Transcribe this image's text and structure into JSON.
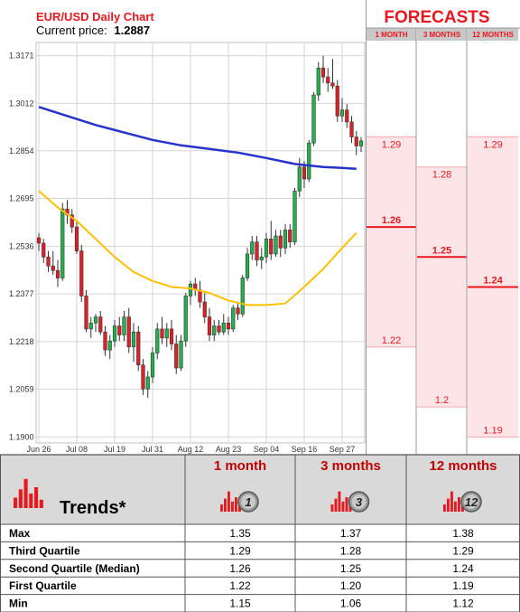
{
  "header": {
    "chart_title": "EUR/USD Daily Chart",
    "price_label": "Current price:",
    "price_value": "1.2887",
    "forecasts_title": "FORECASTS"
  },
  "forecast_columns": [
    "1 MONTH",
    "3 MONTHS",
    "12 MONTHS"
  ],
  "forecast_labels": {
    "1m": {
      "q3": "1.29",
      "median": "1.26",
      "q1": "1.22"
    },
    "3m": {
      "q3": "1.28",
      "median": "1.25",
      "q1": "1.2"
    },
    "12m": {
      "q3": "1.29",
      "median": "1.24",
      "q1": "1.19"
    }
  },
  "colors": {
    "title_red": "#e8191e",
    "forecast_red": "#e8191e",
    "band_pink": "#fde4e6",
    "header_gray": "#c8c8c8",
    "ma_short": "#ffc000",
    "ma_long": "#2633c9",
    "bull": "#22b14c",
    "bear": "#e21f26",
    "table_header_bg": "#d9d9d9",
    "table_red": "#c00000"
  },
  "trends": {
    "title": "Trends*",
    "headers": [
      "1 month",
      "3 months",
      "12 months"
    ],
    "badges": [
      "1",
      "3",
      "12"
    ],
    "rows": [
      {
        "label": "Max",
        "values": [
          "1.35",
          "1.37",
          "1.38"
        ]
      },
      {
        "label": "Third Quartile",
        "values": [
          "1.29",
          "1.28",
          "1.29"
        ]
      },
      {
        "label": "Second Quartile (Median)",
        "values": [
          "1.26",
          "1.25",
          "1.24"
        ]
      },
      {
        "label": "First Quartile",
        "values": [
          "1.22",
          "1.20",
          "1.19"
        ]
      },
      {
        "label": "Min",
        "values": [
          "1.15",
          "1.06",
          "1.12"
        ]
      }
    ]
  },
  "chart_data": {
    "type": "candlestick",
    "title": "EUR/USD Daily Chart",
    "ylim": [
      1.188,
      1.3215
    ],
    "y_ticks": [
      "1.3171",
      "1.3012",
      "1.2854",
      "1.2695",
      "1.2536",
      "1.2377",
      "1.2218",
      "1.2059",
      "1.1900"
    ],
    "x_ticks": [
      "Jun 26",
      "Jul 08",
      "Jul 19",
      "Jul 31",
      "Aug 12",
      "Aug 23",
      "Sep 04",
      "Sep 16",
      "Sep 27"
    ],
    "x_tick_index": [
      0,
      8,
      16,
      24,
      32,
      40,
      48,
      56,
      64
    ],
    "grid": true,
    "candles": [
      {
        "o": 1.2564,
        "h": 1.258,
        "l": 1.252,
        "c": 1.2546
      },
      {
        "o": 1.2546,
        "h": 1.256,
        "l": 1.248,
        "c": 1.25
      },
      {
        "o": 1.25,
        "h": 1.252,
        "l": 1.245,
        "c": 1.247
      },
      {
        "o": 1.247,
        "h": 1.252,
        "l": 1.244,
        "c": 1.2455
      },
      {
        "o": 1.2455,
        "h": 1.249,
        "l": 1.24,
        "c": 1.243
      },
      {
        "o": 1.243,
        "h": 1.268,
        "l": 1.242,
        "c": 1.266
      },
      {
        "o": 1.266,
        "h": 1.269,
        "l": 1.261,
        "c": 1.264
      },
      {
        "o": 1.264,
        "h": 1.266,
        "l": 1.258,
        "c": 1.26
      },
      {
        "o": 1.26,
        "h": 1.262,
        "l": 1.251,
        "c": 1.252
      },
      {
        "o": 1.252,
        "h": 1.254,
        "l": 1.235,
        "c": 1.237
      },
      {
        "o": 1.237,
        "h": 1.239,
        "l": 1.225,
        "c": 1.226
      },
      {
        "o": 1.226,
        "h": 1.23,
        "l": 1.223,
        "c": 1.228
      },
      {
        "o": 1.228,
        "h": 1.231,
        "l": 1.225,
        "c": 1.23
      },
      {
        "o": 1.23,
        "h": 1.232,
        "l": 1.224,
        "c": 1.225
      },
      {
        "o": 1.225,
        "h": 1.227,
        "l": 1.217,
        "c": 1.219
      },
      {
        "o": 1.219,
        "h": 1.224,
        "l": 1.216,
        "c": 1.222
      },
      {
        "o": 1.222,
        "h": 1.229,
        "l": 1.22,
        "c": 1.227
      },
      {
        "o": 1.227,
        "h": 1.23,
        "l": 1.222,
        "c": 1.224
      },
      {
        "o": 1.224,
        "h": 1.232,
        "l": 1.222,
        "c": 1.23
      },
      {
        "o": 1.23,
        "h": 1.233,
        "l": 1.218,
        "c": 1.22
      },
      {
        "o": 1.22,
        "h": 1.228,
        "l": 1.215,
        "c": 1.225
      },
      {
        "o": 1.225,
        "h": 1.227,
        "l": 1.212,
        "c": 1.214
      },
      {
        "o": 1.214,
        "h": 1.216,
        "l": 1.204,
        "c": 1.206
      },
      {
        "o": 1.206,
        "h": 1.212,
        "l": 1.203,
        "c": 1.21
      },
      {
        "o": 1.21,
        "h": 1.22,
        "l": 1.208,
        "c": 1.218
      },
      {
        "o": 1.218,
        "h": 1.228,
        "l": 1.216,
        "c": 1.226
      },
      {
        "o": 1.226,
        "h": 1.23,
        "l": 1.221,
        "c": 1.223
      },
      {
        "o": 1.223,
        "h": 1.228,
        "l": 1.22,
        "c": 1.226
      },
      {
        "o": 1.226,
        "h": 1.229,
        "l": 1.219,
        "c": 1.221
      },
      {
        "o": 1.221,
        "h": 1.224,
        "l": 1.211,
        "c": 1.213
      },
      {
        "o": 1.213,
        "h": 1.224,
        "l": 1.212,
        "c": 1.222
      },
      {
        "o": 1.222,
        "h": 1.238,
        "l": 1.22,
        "c": 1.237
      },
      {
        "o": 1.237,
        "h": 1.242,
        "l": 1.234,
        "c": 1.241
      },
      {
        "o": 1.241,
        "h": 1.243,
        "l": 1.237,
        "c": 1.239
      },
      {
        "o": 1.239,
        "h": 1.242,
        "l": 1.233,
        "c": 1.235
      },
      {
        "o": 1.235,
        "h": 1.238,
        "l": 1.228,
        "c": 1.23
      },
      {
        "o": 1.23,
        "h": 1.233,
        "l": 1.222,
        "c": 1.224
      },
      {
        "o": 1.224,
        "h": 1.229,
        "l": 1.222,
        "c": 1.227
      },
      {
        "o": 1.227,
        "h": 1.229,
        "l": 1.224,
        "c": 1.225
      },
      {
        "o": 1.225,
        "h": 1.231,
        "l": 1.224,
        "c": 1.228
      },
      {
        "o": 1.228,
        "h": 1.23,
        "l": 1.224,
        "c": 1.226
      },
      {
        "o": 1.226,
        "h": 1.234,
        "l": 1.225,
        "c": 1.233
      },
      {
        "o": 1.233,
        "h": 1.235,
        "l": 1.229,
        "c": 1.231
      },
      {
        "o": 1.231,
        "h": 1.244,
        "l": 1.23,
        "c": 1.243
      },
      {
        "o": 1.243,
        "h": 1.253,
        "l": 1.242,
        "c": 1.251
      },
      {
        "o": 1.251,
        "h": 1.257,
        "l": 1.249,
        "c": 1.255
      },
      {
        "o": 1.255,
        "h": 1.257,
        "l": 1.247,
        "c": 1.249
      },
      {
        "o": 1.249,
        "h": 1.253,
        "l": 1.246,
        "c": 1.25
      },
      {
        "o": 1.25,
        "h": 1.258,
        "l": 1.248,
        "c": 1.256
      },
      {
        "o": 1.256,
        "h": 1.262,
        "l": 1.249,
        "c": 1.251
      },
      {
        "o": 1.251,
        "h": 1.259,
        "l": 1.25,
        "c": 1.257
      },
      {
        "o": 1.257,
        "h": 1.259,
        "l": 1.25,
        "c": 1.253
      },
      {
        "o": 1.253,
        "h": 1.261,
        "l": 1.251,
        "c": 1.259
      },
      {
        "o": 1.259,
        "h": 1.261,
        "l": 1.253,
        "c": 1.255
      },
      {
        "o": 1.255,
        "h": 1.273,
        "l": 1.254,
        "c": 1.272
      },
      {
        "o": 1.272,
        "h": 1.283,
        "l": 1.27,
        "c": 1.28
      },
      {
        "o": 1.28,
        "h": 1.282,
        "l": 1.273,
        "c": 1.276
      },
      {
        "o": 1.276,
        "h": 1.289,
        "l": 1.275,
        "c": 1.288
      },
      {
        "o": 1.288,
        "h": 1.305,
        "l": 1.287,
        "c": 1.304
      },
      {
        "o": 1.304,
        "h": 1.315,
        "l": 1.302,
        "c": 1.313
      },
      {
        "o": 1.313,
        "h": 1.317,
        "l": 1.308,
        "c": 1.31
      },
      {
        "o": 1.31,
        "h": 1.313,
        "l": 1.305,
        "c": 1.308
      },
      {
        "o": 1.308,
        "h": 1.316,
        "l": 1.306,
        "c": 1.307
      },
      {
        "o": 1.307,
        "h": 1.309,
        "l": 1.295,
        "c": 1.297
      },
      {
        "o": 1.297,
        "h": 1.303,
        "l": 1.295,
        "c": 1.299
      },
      {
        "o": 1.299,
        "h": 1.301,
        "l": 1.293,
        "c": 1.295
      },
      {
        "o": 1.295,
        "h": 1.297,
        "l": 1.288,
        "c": 1.29
      },
      {
        "o": 1.29,
        "h": 1.292,
        "l": 1.284,
        "c": 1.287
      },
      {
        "o": 1.287,
        "h": 1.29,
        "l": 1.285,
        "c": 1.2887
      }
    ],
    "ma_short": {
      "x": [
        0,
        4,
        8,
        12,
        16,
        20,
        24,
        28,
        32,
        36,
        40,
        44,
        48,
        52,
        56,
        60,
        64,
        67
      ],
      "y": [
        1.272,
        1.2665,
        1.262,
        1.256,
        1.25,
        1.245,
        1.242,
        1.24,
        1.2395,
        1.238,
        1.2355,
        1.234,
        1.234,
        1.2345,
        1.24,
        1.246,
        1.253,
        1.258
      ]
    },
    "ma_long": {
      "x": [
        0,
        6,
        12,
        18,
        24,
        30,
        36,
        42,
        48,
        54,
        60,
        64,
        67
      ],
      "y": [
        1.3,
        1.297,
        1.294,
        1.2915,
        1.289,
        1.2872,
        1.286,
        1.2848,
        1.283,
        1.281,
        1.28,
        1.2797,
        1.2794
      ]
    },
    "forecasts": {
      "1m": {
        "q3": 1.29,
        "median": 1.26,
        "q1": 1.22
      },
      "3m": {
        "q3": 1.28,
        "median": 1.25,
        "q1": 1.2
      },
      "12m": {
        "q3": 1.29,
        "median": 1.24,
        "q1": 1.19
      }
    }
  }
}
